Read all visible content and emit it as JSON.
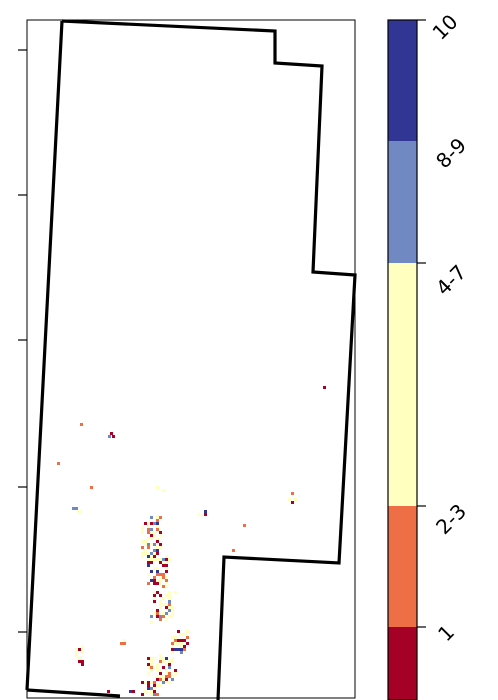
{
  "colors": {
    "c1": "#a50026",
    "c2_3": "#ee6e45",
    "c4_7": "#ffffc0",
    "c8_9": "#7089c2",
    "c10": "#313695",
    "outline": "#000000"
  },
  "legend": {
    "classes": [
      {
        "label": "1",
        "color": "#a50026",
        "from": 0.0,
        "to": 0.1
      },
      {
        "label": "2-3",
        "color": "#ee6e45",
        "from": 0.1,
        "to": 0.3
      },
      {
        "label": "4-7",
        "color": "#ffffc0",
        "from": 0.3,
        "to": 0.7
      },
      {
        "label": "8-9",
        "color": "#7089c2",
        "from": 0.7,
        "to": 0.9
      },
      {
        "label": "10",
        "color": "#313695",
        "from": 0.9,
        "to": 1.0
      }
    ]
  },
  "y_ticks": 5
}
